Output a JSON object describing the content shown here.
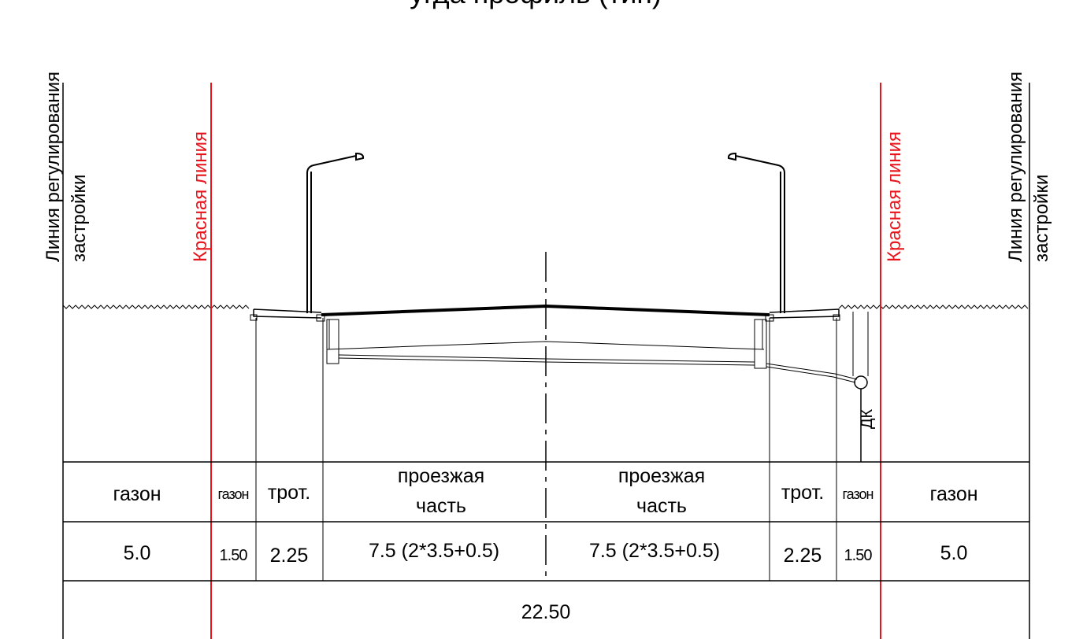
{
  "labels": {
    "title_fragment": "угда профиль (тип)",
    "building_line_left_1": "Линия регулирования",
    "building_line_left_2": "застройки",
    "red_line_left": "Красная линия",
    "red_line_right": "Красная линия",
    "building_line_right_1": "Линия регулирования",
    "building_line_right_2": "застройки",
    "drain_label": "ДК"
  },
  "table": {
    "elements": [
      {
        "name": "газон",
        "width": "5.0"
      },
      {
        "name": "газон",
        "width": "1.50"
      },
      {
        "name": "трот.",
        "width": "2.25"
      },
      {
        "name_1": "проезжая",
        "name_2": "часть",
        "width": "7.5 (2*3.5+0.5)"
      },
      {
        "name_1": "проезжая",
        "name_2": "часть",
        "width": "7.5 (2*3.5+0.5)"
      },
      {
        "name": "трот.",
        "width": "2.25"
      },
      {
        "name": "газон",
        "width": "1.50"
      },
      {
        "name": "газон",
        "width": "5.0"
      }
    ],
    "total": "22.50"
  },
  "colors": {
    "red_line": "#e8141b",
    "line": "#000000"
  }
}
